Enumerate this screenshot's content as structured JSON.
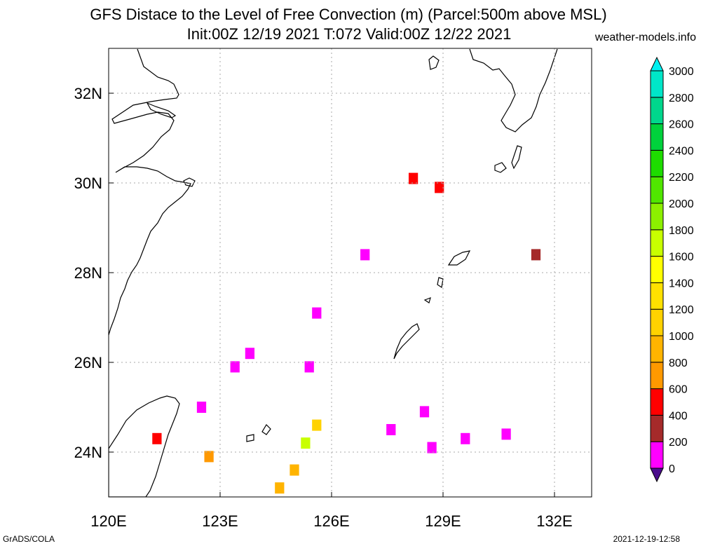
{
  "title_line1": "GFS Distace to the Level of Free Convection (m) (Parcel:500m above MSL)",
  "title_line2": "Init:00Z 12/19 2021 T:072 Valid:00Z 12/22 2021",
  "site": "weather-models.info",
  "footer_left": "GrADS/COLA",
  "footer_right": "2021-12-19-12:58",
  "map": {
    "lon_range": [
      120,
      133
    ],
    "lat_range": [
      23,
      33
    ],
    "lon_ticks": [
      120,
      123,
      126,
      129,
      132
    ],
    "lon_tick_labels": [
      "120E",
      "123E",
      "126E",
      "129E",
      "132E"
    ],
    "lat_ticks": [
      24,
      26,
      28,
      30,
      32
    ],
    "lat_tick_labels": [
      "24N",
      "26N",
      "28N",
      "30N",
      "32N"
    ],
    "grid": true
  },
  "colorbar": {
    "labels": [
      "0",
      "200",
      "400",
      "600",
      "800",
      "1000",
      "1200",
      "1400",
      "1600",
      "1800",
      "2000",
      "2200",
      "2400",
      "2600",
      "2800",
      "3000"
    ],
    "colors": [
      "#4a0c8c",
      "#ff00ff",
      "#a52a2a",
      "#ff0000",
      "#ff9900",
      "#ffb400",
      "#ffd200",
      "#ffe100",
      "#ffff00",
      "#c8ff00",
      "#8cf000",
      "#50e600",
      "#1edc00",
      "#00d23c",
      "#00d78c",
      "#00e6c8",
      "#00f0f0"
    ]
  },
  "field_cells": [
    {
      "lon": 128.2,
      "lat": 30.1,
      "value": 500
    },
    {
      "lon": 128.9,
      "lat": 29.9,
      "value": 500
    },
    {
      "lon": 131.5,
      "lat": 28.4,
      "value": 300
    },
    {
      "lon": 126.9,
      "lat": 28.4,
      "value": 50
    },
    {
      "lon": 125.6,
      "lat": 27.1,
      "value": 50
    },
    {
      "lon": 123.8,
      "lat": 26.2,
      "value": 50
    },
    {
      "lon": 123.4,
      "lat": 25.9,
      "value": 50
    },
    {
      "lon": 125.4,
      "lat": 25.9,
      "value": 50
    },
    {
      "lon": 122.5,
      "lat": 25.0,
      "value": 150
    },
    {
      "lon": 121.3,
      "lat": 24.3,
      "value": 450
    },
    {
      "lon": 122.7,
      "lat": 23.9,
      "value": 700
    },
    {
      "lon": 125.6,
      "lat": 24.6,
      "value": 1100
    },
    {
      "lon": 125.3,
      "lat": 24.2,
      "value": 1700
    },
    {
      "lon": 125.0,
      "lat": 23.6,
      "value": 1000
    },
    {
      "lon": 124.6,
      "lat": 23.2,
      "value": 900
    },
    {
      "lon": 127.6,
      "lat": 24.5,
      "value": 50
    },
    {
      "lon": 128.5,
      "lat": 24.9,
      "value": 50
    },
    {
      "lon": 128.7,
      "lat": 24.1,
      "value": 50
    },
    {
      "lon": 129.6,
      "lat": 24.3,
      "value": 150
    },
    {
      "lon": 130.7,
      "lat": 24.4,
      "value": 150
    }
  ]
}
